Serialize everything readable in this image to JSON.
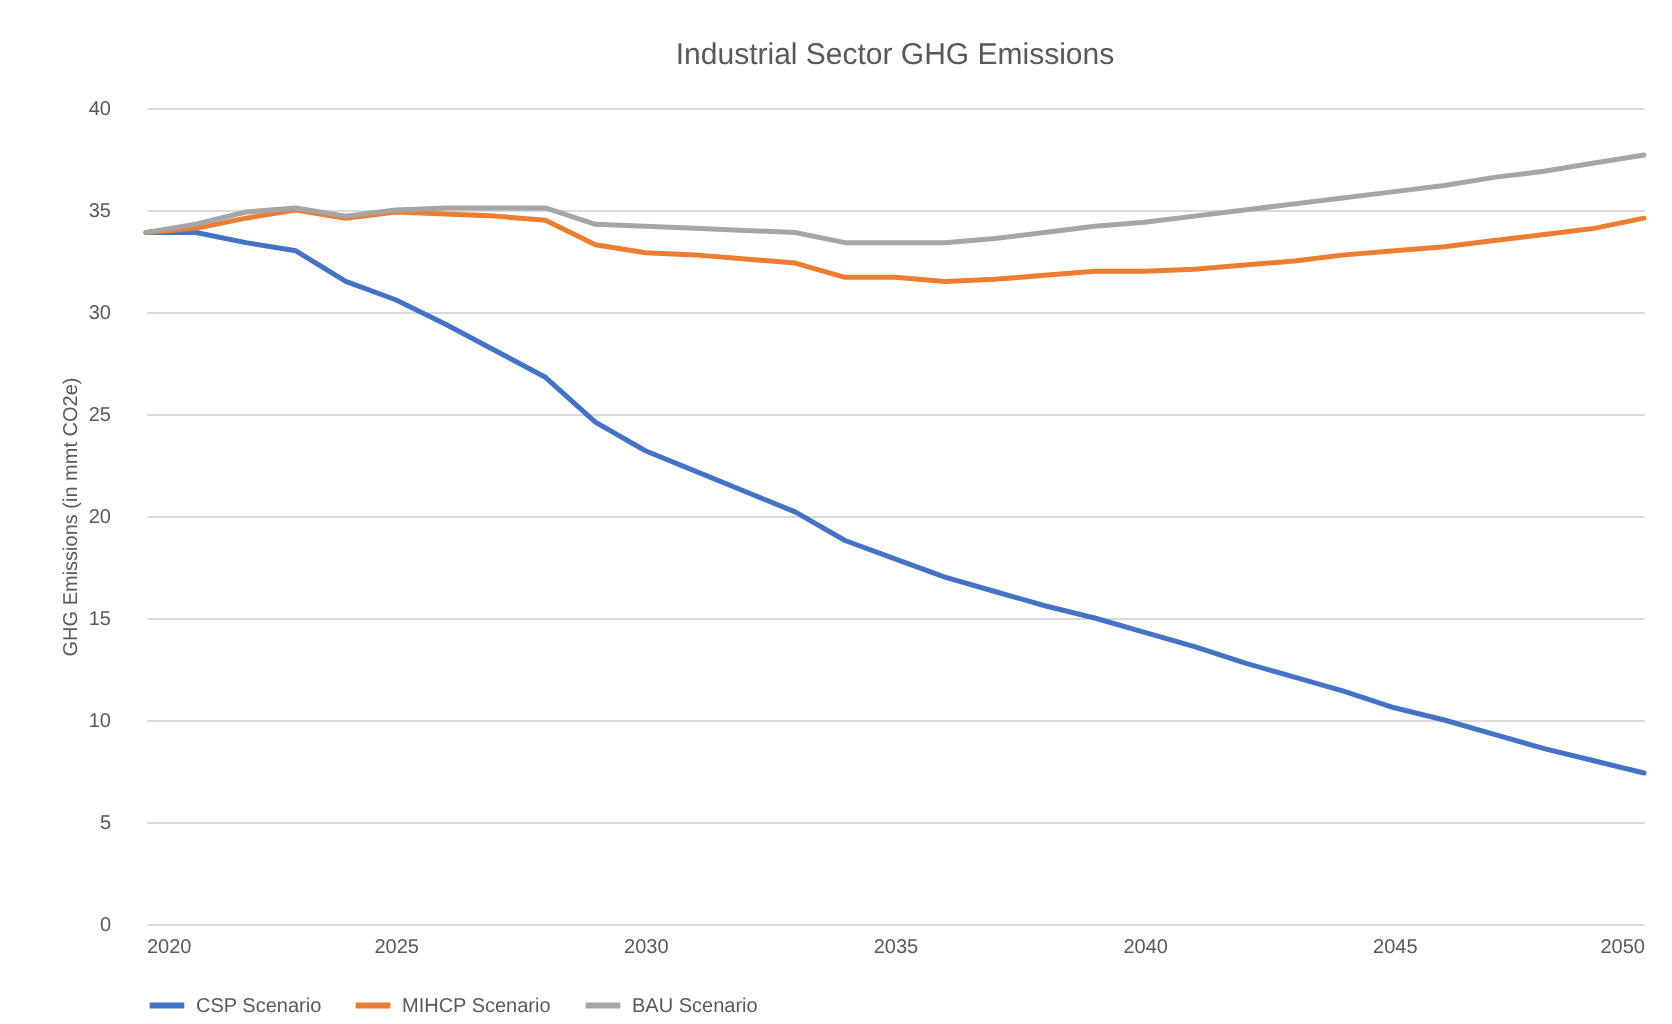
{
  "chart_data": {
    "type": "line",
    "title": "Industrial Sector GHG Emissions",
    "ylabel": "GHG Emissions (in mmt CO2e)",
    "x": [
      2020,
      2021,
      2022,
      2023,
      2024,
      2025,
      2026,
      2027,
      2028,
      2029,
      2030,
      2031,
      2032,
      2033,
      2034,
      2035,
      2036,
      2037,
      2038,
      2039,
      2040,
      2041,
      2042,
      2043,
      2044,
      2045,
      2046,
      2047,
      2048,
      2049,
      2050
    ],
    "series": [
      {
        "name": "CSP Scenario",
        "color": "#4472c4",
        "values": [
          33.9,
          33.9,
          33.4,
          33.0,
          31.5,
          30.6,
          29.4,
          28.1,
          26.8,
          24.6,
          23.2,
          22.2,
          21.2,
          20.2,
          18.8,
          17.9,
          17.0,
          16.3,
          15.6,
          15.0,
          14.3,
          13.6,
          12.8,
          12.1,
          11.4,
          10.6,
          10.0,
          9.3,
          8.6,
          8.0,
          7.4
        ]
      },
      {
        "name": "MIHCP Scenario",
        "color": "#ed7d31",
        "values": [
          33.9,
          34.1,
          34.6,
          35.0,
          34.6,
          34.9,
          34.8,
          34.7,
          34.5,
          33.3,
          32.9,
          32.8,
          32.6,
          32.4,
          31.7,
          31.7,
          31.5,
          31.6,
          31.8,
          32.0,
          32.0,
          32.1,
          32.3,
          32.5,
          32.8,
          33.0,
          33.2,
          33.5,
          33.8,
          34.1,
          34.6
        ]
      },
      {
        "name": "BAU Scenario",
        "color": "#a5a5a5",
        "values": [
          33.9,
          34.3,
          34.9,
          35.1,
          34.7,
          35.0,
          35.1,
          35.1,
          35.1,
          34.3,
          34.2,
          34.1,
          34.0,
          33.9,
          33.4,
          33.4,
          33.4,
          33.6,
          33.9,
          34.2,
          34.4,
          34.7,
          35.0,
          35.3,
          35.6,
          35.9,
          36.2,
          36.6,
          36.9,
          37.3,
          37.7
        ]
      }
    ],
    "xlim": [
      2020,
      2050
    ],
    "xticks": [
      2020,
      2025,
      2030,
      2035,
      2040,
      2045,
      2050
    ],
    "ylim": [
      0,
      40
    ],
    "yticks": [
      0,
      5,
      10,
      15,
      20,
      25,
      30,
      35,
      40
    ],
    "grid": "y",
    "legend": "bottom",
    "marker": "none",
    "line_style": "solid"
  }
}
